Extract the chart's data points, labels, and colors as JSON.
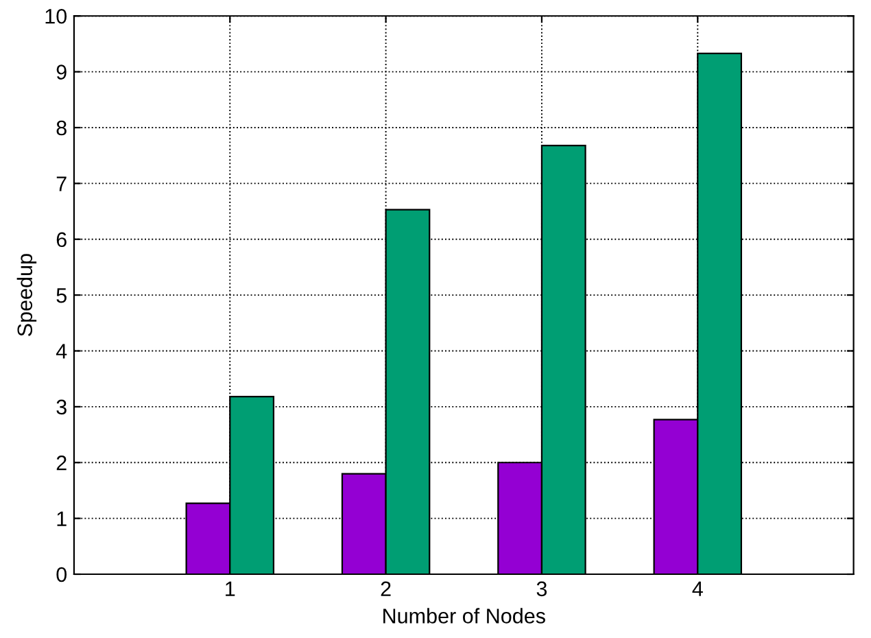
{
  "chart_data": {
    "type": "bar",
    "xlabel": "Number of Nodes",
    "ylabel": "Speedup",
    "categories": [
      "1",
      "2",
      "3",
      "4"
    ],
    "series": [
      {
        "color": "#9400d3",
        "values": [
          1.27,
          1.8,
          2.0,
          2.77
        ]
      },
      {
        "color": "#009e73",
        "values": [
          3.18,
          6.53,
          7.68,
          9.33
        ]
      }
    ],
    "ylim": [
      0,
      10
    ],
    "yticks": [
      0,
      1,
      2,
      3,
      4,
      5,
      6,
      7,
      8,
      9,
      10
    ],
    "grid": true,
    "line_style": "dotted"
  }
}
